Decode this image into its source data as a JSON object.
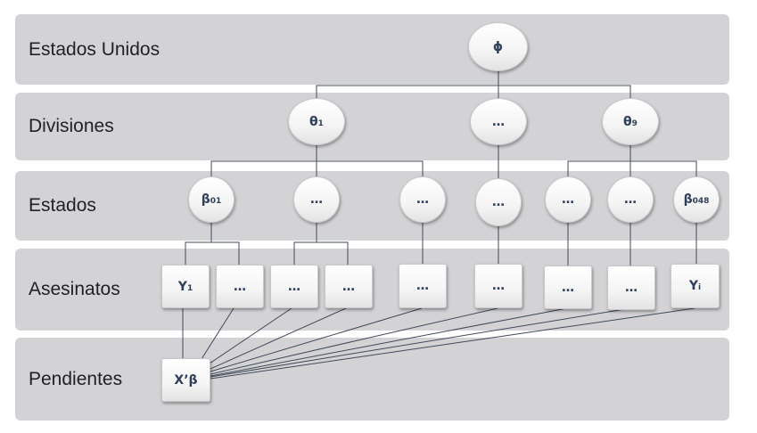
{
  "bands": {
    "estados_unidos": "Estados Unidos",
    "divisiones": "Divisiones",
    "estados": "Estados",
    "asesinatos": "Asesinatos",
    "pendientes": "Pendientes"
  },
  "nodes": {
    "phi": "ϕ",
    "theta1": {
      "base": "θ",
      "sub": "1"
    },
    "div_mid": "…",
    "theta9": {
      "base": "θ",
      "sub": "9"
    },
    "beta01": {
      "base": "β",
      "sub": "01"
    },
    "state_2": "…",
    "state_3": "…",
    "state_4": "…",
    "state_5": "…",
    "state_6": "…",
    "beta048": {
      "base": "β",
      "sub": "048"
    },
    "y1": {
      "base": "Y",
      "sub": "1"
    },
    "obs_2": "…",
    "obs_3": "…",
    "obs_4": "…",
    "obs_5": "…",
    "obs_6": "…",
    "obs_7": "…",
    "obs_8": "…",
    "yi": {
      "base": "Y",
      "sub": "i"
    },
    "xbeta": "X’β"
  },
  "colors": {
    "band": "#d3d3d6",
    "line": "#404a58",
    "node_text": "#2f3f5a"
  }
}
